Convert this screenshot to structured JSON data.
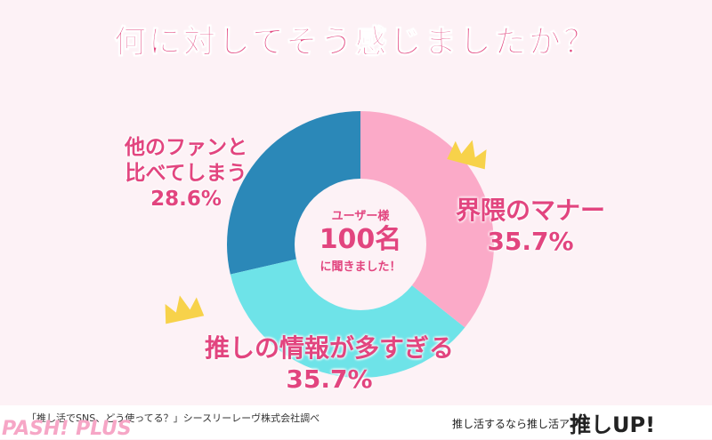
{
  "title": "何に対してそう感じましたか？",
  "chart_data": {
    "type": "pie",
    "title": "何に対してそう感じましたか？",
    "categories": [
      "界隈のマナー",
      "推しの情報が多すぎる",
      "他のファンと比べてしまう"
    ],
    "values": [
      35.7,
      35.7,
      28.6
    ],
    "labels": [
      "35.7%",
      "35.7%",
      "28.6%"
    ],
    "colors": [
      "#fbaac8",
      "#6ee3e8",
      "#2b88b8"
    ]
  },
  "labels": {
    "manner": {
      "name": "界隈のマナー",
      "pct": "35.7%"
    },
    "info": {
      "name": "推しの情報が多すぎる",
      "pct": "35.7%"
    },
    "compare": {
      "line1": "他のファンと",
      "line2": "比べてしまう",
      "pct": "28.6%"
    }
  },
  "center": {
    "top": "ユーザー様",
    "count": "100名",
    "bottom": "に聞きました！"
  },
  "footer": {
    "source": "「推し活でSNS、どう使ってる？」シースリーレーヴ株式会社調べ",
    "left_logo": "PASH! PLUS",
    "tagline": "推し活するなら推し活アプリ",
    "right_logo": "推しUP!"
  }
}
